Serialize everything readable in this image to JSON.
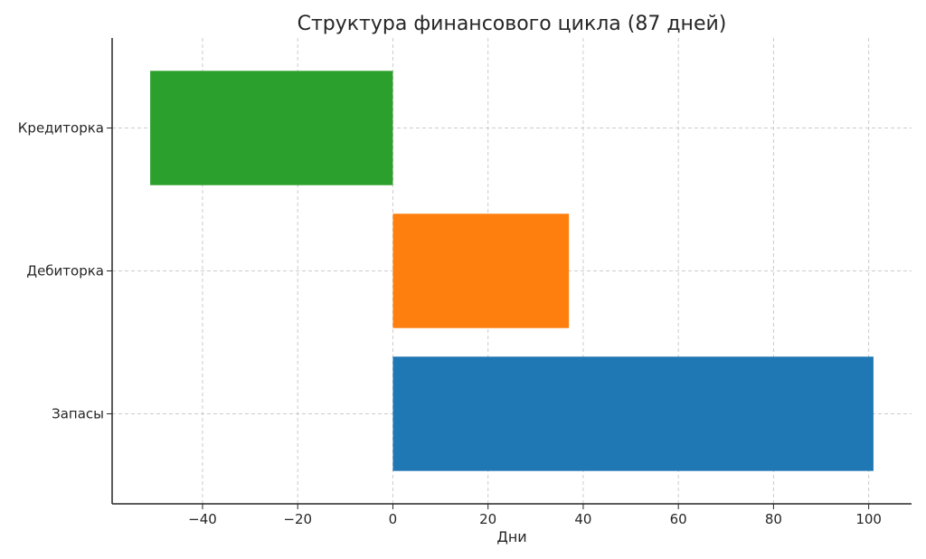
{
  "chart_data": {
    "type": "bar",
    "orientation": "horizontal",
    "title": "Структура финансового цикла (87 дней)",
    "xlabel": "Дни",
    "ylabel": "",
    "categories": [
      "Запасы",
      "Дебиторка",
      "Кредиторка"
    ],
    "values": [
      101,
      37,
      -51
    ],
    "colors": [
      "#1f77b4",
      "#ff7f0e",
      "#2ca02c"
    ],
    "xlim": [
      -59,
      109
    ],
    "xticks": [
      -40,
      -20,
      0,
      20,
      40,
      60,
      80,
      100
    ],
    "xtick_labels": [
      "−40",
      "−20",
      "0",
      "20",
      "40",
      "60",
      "80",
      "100"
    ],
    "grid": true
  }
}
